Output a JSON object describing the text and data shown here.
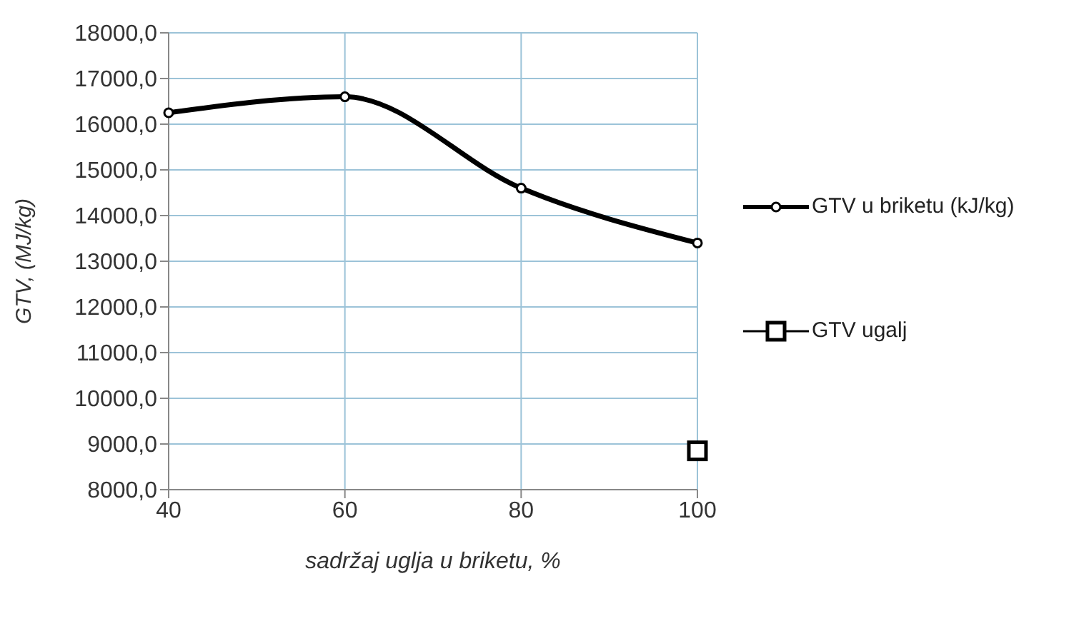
{
  "chart_data": {
    "type": "line",
    "xlabel": "sadržaj uglja u briketu, %",
    "ylabel": "GTV, (MJ/kg)",
    "xlim": [
      40,
      100
    ],
    "xticks": [
      40,
      60,
      80,
      100
    ],
    "ylim": [
      8000,
      18000
    ],
    "yticks": [
      {
        "value": 8000,
        "label": "8000,0"
      },
      {
        "value": 9000,
        "label": "9000,0"
      },
      {
        "value": 10000,
        "label": "10000,0"
      },
      {
        "value": 11000,
        "label": "11000,0"
      },
      {
        "value": 12000,
        "label": "12000,0"
      },
      {
        "value": 13000,
        "label": "13000,0"
      },
      {
        "value": 14000,
        "label": "14000,0"
      },
      {
        "value": 15000,
        "label": "15000,0"
      },
      {
        "value": 16000,
        "label": "16000,0"
      },
      {
        "value": 17000,
        "label": "17000,0"
      },
      {
        "value": 18000,
        "label": "18000,0"
      }
    ],
    "grid": true,
    "legend": "right",
    "series": [
      {
        "name": "GTV u briketu (kJ/kg)",
        "type": "line",
        "marker": "circle",
        "color": "#000000",
        "x": [
          40,
          60,
          80,
          100
        ],
        "values": [
          16250,
          16600,
          14600,
          13400
        ]
      },
      {
        "name": "GTV ugalj",
        "type": "scatter",
        "marker": "square",
        "color": "#000000",
        "x": [
          100
        ],
        "values": [
          8850
        ]
      }
    ]
  }
}
